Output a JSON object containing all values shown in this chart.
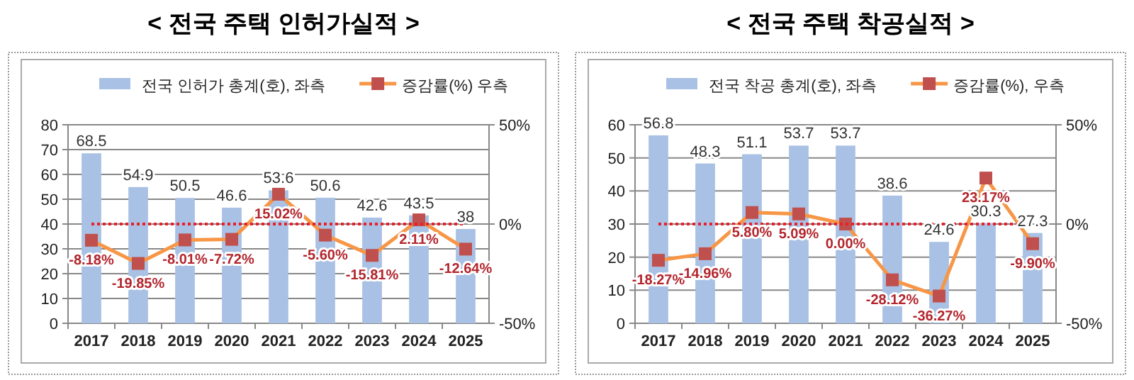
{
  "chart_data": [
    {
      "type": "bar",
      "title": "< 전국 주택 인허가실적 >",
      "categories": [
        "2017",
        "2018",
        "2019",
        "2020",
        "2021",
        "2022",
        "2023",
        "2024",
        "2025"
      ],
      "series": [
        {
          "name": "전국 인허가 총계(호), 좌측",
          "color": "#a9c1e4",
          "values": [
            68.5,
            54.9,
            50.5,
            46.6,
            53.6,
            50.6,
            42.6,
            43.5,
            38
          ],
          "value_labels": [
            "68.5",
            "54.9",
            "50.5",
            "46.6",
            "53.6",
            "50.6",
            "42.6",
            "43.5",
            "38"
          ]
        },
        {
          "name": "증감률(%) 우측",
          "type": "line",
          "axis": "y2",
          "color": "#f79646",
          "colors": [
            "#c0504d",
            "#c0504d",
            "#c0504d",
            "#c0504d",
            "#c0504d",
            "#c0504d",
            "#c0504d",
            "#c0504d",
            "#c0504d"
          ],
          "values": [
            -8.18,
            -19.85,
            -8.01,
            -7.72,
            15.02,
            -5.6,
            -15.81,
            2.11,
            -12.64
          ],
          "value_labels": [
            "-8.18%",
            "-19.85%",
            "-8.01%",
            "-7.72%",
            "15.02%",
            "-5.60%",
            "-15.81%",
            "2.11%",
            "-12.64%"
          ]
        }
      ],
      "ylim": [
        0,
        80
      ],
      "yticks": [
        0,
        10,
        20,
        30,
        40,
        50,
        60,
        70,
        80
      ],
      "y2lim": [
        -50,
        50
      ],
      "y2ticks": [
        {
          "value": -50,
          "label": "-50%"
        },
        {
          "value": 0,
          "label": "0%"
        },
        {
          "value": 50,
          "label": "50%"
        }
      ],
      "ref_lines": [
        {
          "axis": "y2",
          "value": 0,
          "color": "#e8202a",
          "line_style": "dotted"
        }
      ],
      "grid": "y",
      "legend": "top",
      "marker": "square"
    },
    {
      "type": "bar",
      "title": "< 전국 주택 착공실적 >",
      "categories": [
        "2017",
        "2018",
        "2019",
        "2020",
        "2021",
        "2022",
        "2023",
        "2024",
        "2025"
      ],
      "series": [
        {
          "name": "전국 착공 총계(호), 좌측",
          "color": "#a9c1e4",
          "values": [
            56.8,
            48.3,
            51.1,
            53.7,
            53.7,
            38.6,
            24.6,
            30.3,
            27.3
          ],
          "value_labels": [
            "56.8",
            "48.3",
            "51.1",
            "53.7",
            "53.7",
            "38.6",
            "24.6",
            "30.3",
            "27.3"
          ]
        },
        {
          "name": "증감률(%), 우측",
          "type": "line",
          "axis": "y2",
          "color": "#f79646",
          "colors": [
            "#c0504d",
            "#c0504d",
            "#c0504d",
            "#c0504d",
            "#c0504d",
            "#c0504d",
            "#c0504d",
            "#c0504d",
            "#c0504d"
          ],
          "values": [
            -18.27,
            -14.96,
            5.8,
            5.09,
            0.0,
            -28.12,
            -36.27,
            23.17,
            -9.9
          ],
          "value_labels": [
            "-18.27%",
            "-14.96%",
            "5.80%",
            "5.09%",
            "0.00%",
            "-28.12%",
            "-36.27%",
            "23.17%",
            "-9.90%"
          ]
        }
      ],
      "ylim": [
        0,
        60
      ],
      "yticks": [
        0,
        10,
        20,
        30,
        40,
        50,
        60
      ],
      "y2lim": [
        -50,
        50
      ],
      "y2ticks": [
        {
          "value": -50,
          "label": "-50%"
        },
        {
          "value": 0,
          "label": "0%"
        },
        {
          "value": 50,
          "label": "50%"
        }
      ],
      "ref_lines": [
        {
          "axis": "y2",
          "value": 0,
          "color": "#e8202a",
          "line_style": "dotted"
        }
      ],
      "grid": "y",
      "legend": "top",
      "marker": "square"
    }
  ]
}
